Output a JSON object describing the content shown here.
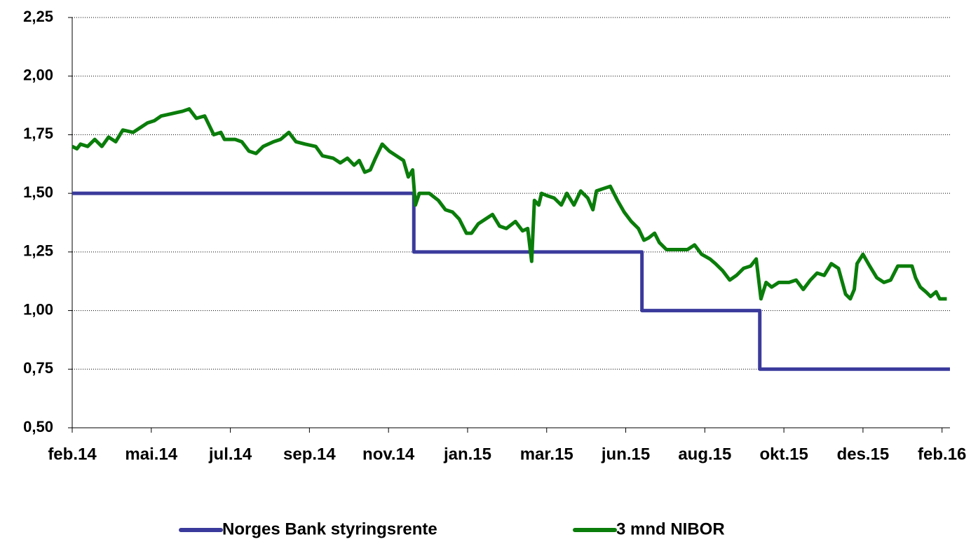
{
  "chart_data": {
    "type": "line",
    "xlim": [
      0,
      22.2
    ],
    "xticks": [
      {
        "value": 0,
        "label": "feb.14"
      },
      {
        "value": 2,
        "label": "mai.14"
      },
      {
        "value": 4,
        "label": "jul.14"
      },
      {
        "value": 6,
        "label": "sep.14"
      },
      {
        "value": 8,
        "label": "nov.14"
      },
      {
        "value": 10,
        "label": "jan.15"
      },
      {
        "value": 12,
        "label": "mar.15"
      },
      {
        "value": 14,
        "label": "jun.15"
      },
      {
        "value": 16,
        "label": "aug.15"
      },
      {
        "value": 18,
        "label": "okt.15"
      },
      {
        "value": 20,
        "label": "des.15"
      },
      {
        "value": 22,
        "label": "feb.16"
      }
    ],
    "ylim": [
      0.5,
      2.25
    ],
    "yticks": [
      {
        "value": 0.5,
        "label": "0,50"
      },
      {
        "value": 0.75,
        "label": "0,75"
      },
      {
        "value": 1.0,
        "label": "1,00"
      },
      {
        "value": 1.25,
        "label": "1,25"
      },
      {
        "value": 1.5,
        "label": "1,50"
      },
      {
        "value": 1.75,
        "label": "1,75"
      },
      {
        "value": 2.0,
        "label": "2,00"
      },
      {
        "value": 2.25,
        "label": "2,25"
      }
    ],
    "grid": true,
    "legend": "bottom",
    "series": [
      {
        "name": "Norges Bank styringsrente",
        "color": "#3a3a9c",
        "x": [
          0,
          8.64,
          8.64,
          14.41,
          14.41,
          17.39,
          17.39,
          22.2
        ],
        "values": [
          1.5,
          1.5,
          1.25,
          1.25,
          1.0,
          1.0,
          0.75,
          0.75
        ]
      },
      {
        "name": "3 mnd NIBOR",
        "color": "#0a7d0a",
        "x": [
          0,
          0.12,
          0.21,
          0.39,
          0.57,
          0.75,
          0.92,
          1.1,
          1.28,
          1.54,
          1.72,
          1.9,
          2.08,
          2.25,
          2.52,
          2.79,
          2.96,
          3.14,
          3.35,
          3.58,
          3.76,
          3.85,
          4.12,
          4.29,
          4.47,
          4.65,
          4.83,
          5.09,
          5.27,
          5.48,
          5.66,
          5.89,
          6.16,
          6.33,
          6.6,
          6.78,
          6.96,
          7.13,
          7.26,
          7.4,
          7.54,
          7.67,
          7.84,
          8.02,
          8.2,
          8.38,
          8.5,
          8.61,
          8.68,
          8.78,
          9.03,
          9.26,
          9.44,
          9.62,
          9.79,
          9.97,
          10.1,
          10.27,
          10.45,
          10.63,
          10.81,
          10.98,
          11.21,
          11.39,
          11.52,
          11.62,
          11.69,
          11.8,
          11.87,
          12.01,
          12.19,
          12.37,
          12.51,
          12.69,
          12.86,
          13.04,
          13.17,
          13.26,
          13.43,
          13.61,
          13.79,
          13.96,
          14.14,
          14.32,
          14.46,
          14.58,
          14.73,
          14.85,
          15.03,
          15.29,
          15.56,
          15.74,
          15.92,
          16.13,
          16.27,
          16.45,
          16.63,
          16.8,
          16.98,
          17.16,
          17.3,
          17.42,
          17.55,
          17.69,
          17.87,
          18.13,
          18.31,
          18.49,
          18.67,
          18.84,
          19.02,
          19.2,
          19.38,
          19.56,
          19.68,
          19.78,
          19.85,
          20.0,
          20.17,
          20.35,
          20.53,
          20.7,
          20.88,
          21.06,
          21.24,
          21.33,
          21.45,
          21.59,
          21.71,
          21.85,
          21.94,
          22.12
        ],
        "values": [
          1.7,
          1.69,
          1.71,
          1.7,
          1.73,
          1.7,
          1.74,
          1.72,
          1.77,
          1.76,
          1.78,
          1.8,
          1.81,
          1.83,
          1.84,
          1.85,
          1.86,
          1.82,
          1.83,
          1.75,
          1.76,
          1.73,
          1.73,
          1.72,
          1.68,
          1.67,
          1.7,
          1.72,
          1.73,
          1.76,
          1.72,
          1.71,
          1.7,
          1.66,
          1.65,
          1.63,
          1.65,
          1.62,
          1.64,
          1.59,
          1.6,
          1.65,
          1.71,
          1.68,
          1.66,
          1.64,
          1.57,
          1.6,
          1.45,
          1.5,
          1.5,
          1.47,
          1.43,
          1.42,
          1.39,
          1.33,
          1.33,
          1.37,
          1.39,
          1.41,
          1.36,
          1.35,
          1.38,
          1.34,
          1.35,
          1.21,
          1.47,
          1.45,
          1.5,
          1.49,
          1.48,
          1.45,
          1.5,
          1.45,
          1.51,
          1.48,
          1.43,
          1.51,
          1.52,
          1.53,
          1.47,
          1.42,
          1.38,
          1.35,
          1.3,
          1.31,
          1.33,
          1.29,
          1.26,
          1.26,
          1.26,
          1.28,
          1.24,
          1.22,
          1.2,
          1.17,
          1.13,
          1.15,
          1.18,
          1.19,
          1.22,
          1.05,
          1.12,
          1.1,
          1.12,
          1.12,
          1.13,
          1.09,
          1.13,
          1.16,
          1.15,
          1.2,
          1.18,
          1.07,
          1.05,
          1.09,
          1.2,
          1.24,
          1.19,
          1.14,
          1.12,
          1.13,
          1.19,
          1.19,
          1.19,
          1.14,
          1.1,
          1.08,
          1.06,
          1.08,
          1.05,
          1.05
        ]
      }
    ]
  }
}
